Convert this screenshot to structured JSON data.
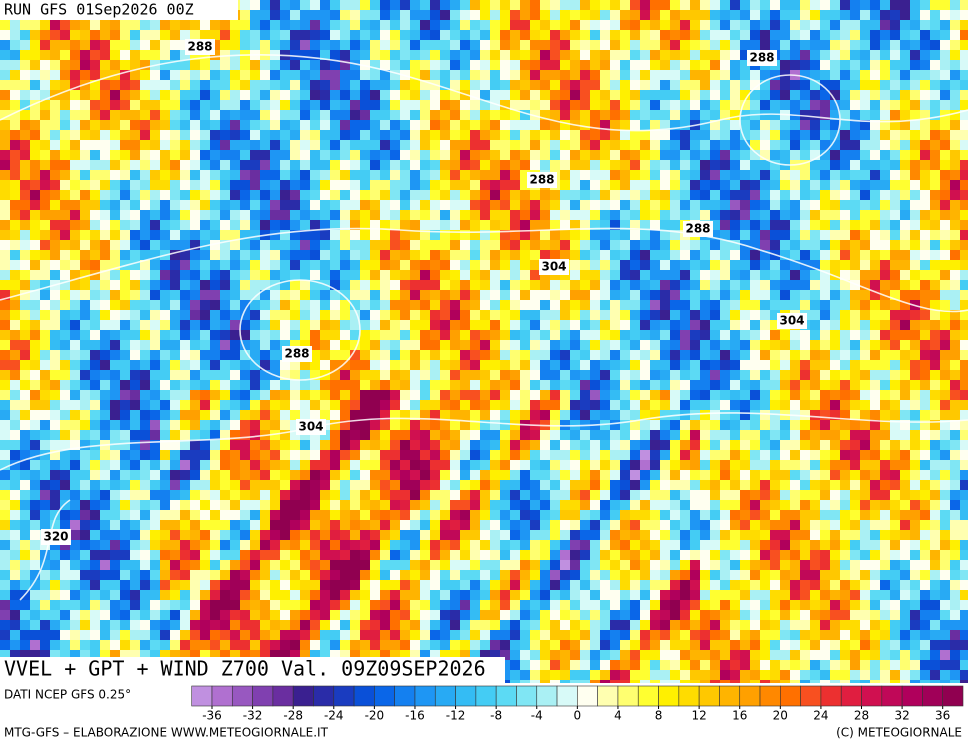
{
  "header": {
    "run": "RUN GFS 01Sep2026 00Z"
  },
  "title": "VVEL + GPT + WIND Z700 Val. 09Z09SEP2026",
  "source": "DATI NCEP GFS 0.25°",
  "contour_labels": [
    288,
    288,
    288,
    288,
    304,
    304,
    288,
    304,
    320
  ],
  "colorbar": {
    "bounds": [
      -38,
      -36,
      -34,
      -32,
      -30,
      -28,
      -26,
      -24,
      -22,
      -20,
      -18,
      -16,
      -14,
      -12,
      -10,
      -8,
      -6,
      -4,
      -2,
      0,
      2,
      4,
      6,
      8,
      10,
      12,
      14,
      16,
      18,
      20,
      22,
      24,
      26,
      28,
      30,
      32,
      34,
      36,
      38
    ],
    "colors": [
      "#c090e0",
      "#b070d0",
      "#9858c0",
      "#8040b0",
      "#6a2ea0",
      "#3a2090",
      "#2a2ca8",
      "#1a3cc0",
      "#0a50d8",
      "#0a66e8",
      "#1480f0",
      "#1e96f4",
      "#28aaf4",
      "#34bcf4",
      "#44ccf4",
      "#5cdaf4",
      "#80e6f4",
      "#aaf0f4",
      "#d8faf8",
      "#fffff0",
      "#ffffb0",
      "#ffff70",
      "#ffff30",
      "#fff000",
      "#ffdc00",
      "#ffc800",
      "#ffb400",
      "#ffa000",
      "#ff8800",
      "#ff7000",
      "#f85020",
      "#ec3030",
      "#e01e40",
      "#d01050",
      "#c00858",
      "#b0005c",
      "#a00058",
      "#900050"
    ],
    "ticks": [
      -36,
      -32,
      -28,
      -24,
      -20,
      -16,
      -12,
      -8,
      -4,
      0,
      4,
      8,
      12,
      16,
      20,
      24,
      28,
      32,
      36
    ]
  },
  "footer": {
    "left": "MTG-GFS – ELABORAZIONE WWW.METEOGIORNALE.IT",
    "right": "(C) METEOGIORNALE"
  }
}
